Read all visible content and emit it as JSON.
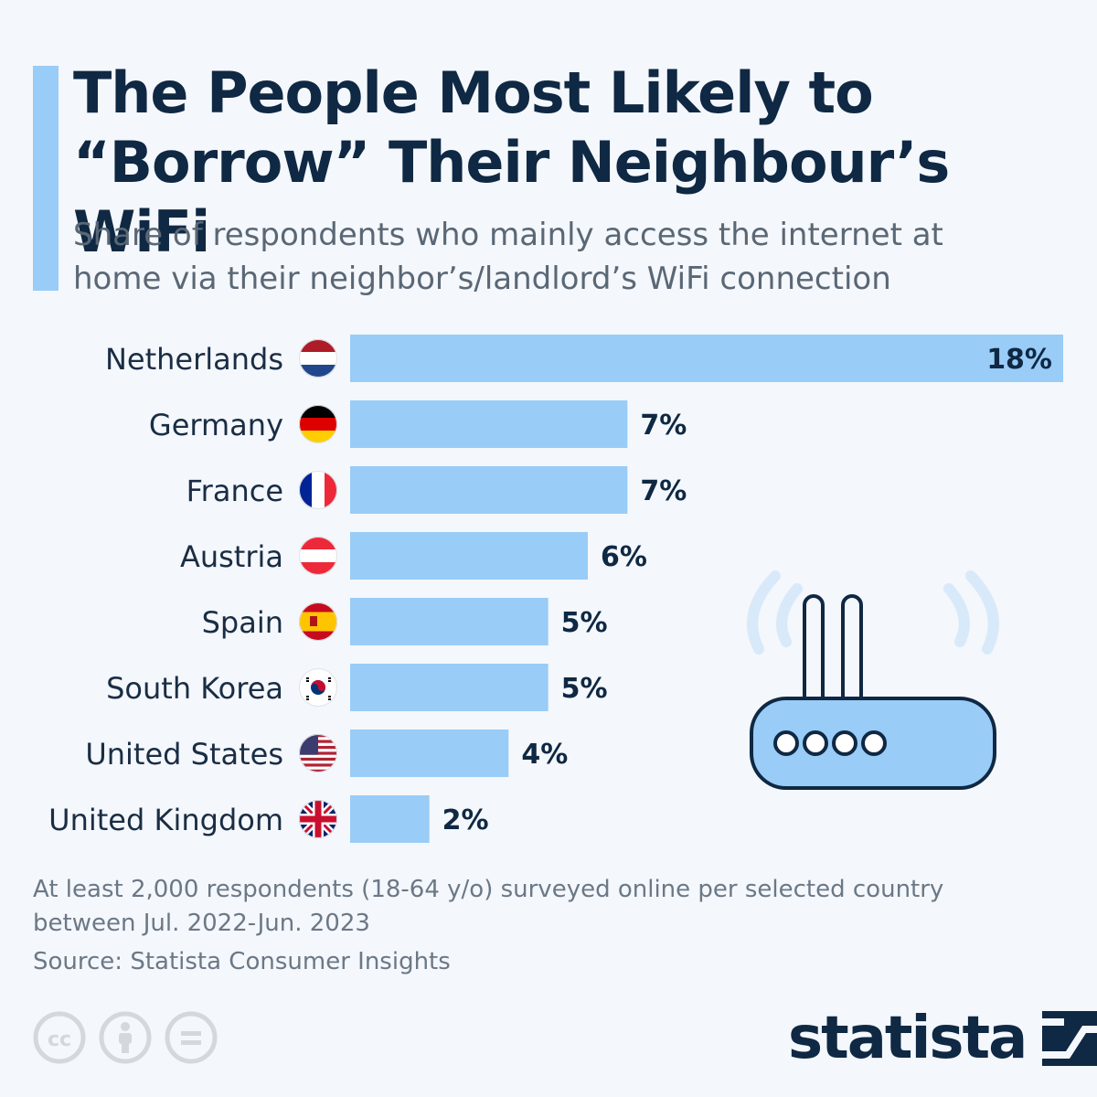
{
  "header": {
    "title_line1": "The People Most Likely to",
    "title_line2": "“Borrow” Their Neighbour’s WiFi",
    "subtitle_line1": "Share of respondents who mainly access the internet at",
    "subtitle_line2": "home via their neighbor’s/landlord’s WiFi connection"
  },
  "chart_data": {
    "type": "bar",
    "orientation": "horizontal",
    "categories": [
      "Netherlands",
      "Germany",
      "France",
      "Austria",
      "Spain",
      "South Korea",
      "United States",
      "United Kingdom"
    ],
    "values": [
      18,
      7,
      7,
      6,
      5,
      5,
      4,
      2
    ],
    "value_labels": [
      "18%",
      "7%",
      "7%",
      "6%",
      "5%",
      "5%",
      "4%",
      "2%"
    ],
    "flags": [
      "netherlands-flag-icon",
      "germany-flag-icon",
      "france-flag-icon",
      "austria-flag-icon",
      "spain-flag-icon",
      "south-korea-flag-icon",
      "united-states-flag-icon",
      "united-kingdom-flag-icon"
    ],
    "xlim": [
      0,
      18
    ],
    "bar_color": "#99ccf7",
    "label_color": "#0f2843",
    "legend": "none",
    "grid": false
  },
  "footer": {
    "note_line1": "At least 2,000 respondents (18-64 y/o) surveyed online per selected country",
    "note_line2": "between Jul. 2022-Jun. 2023",
    "source": "Source: Statista Consumer Insights",
    "license_icons": [
      "creative-commons-icon",
      "attribution-icon",
      "no-derivatives-icon"
    ],
    "logo_text": "statista"
  },
  "colors": {
    "background": "#f4f7fb",
    "accent": "#99ccf7",
    "title": "#0f2843",
    "subtitle": "#5a6775",
    "footnote": "#6b7886"
  }
}
